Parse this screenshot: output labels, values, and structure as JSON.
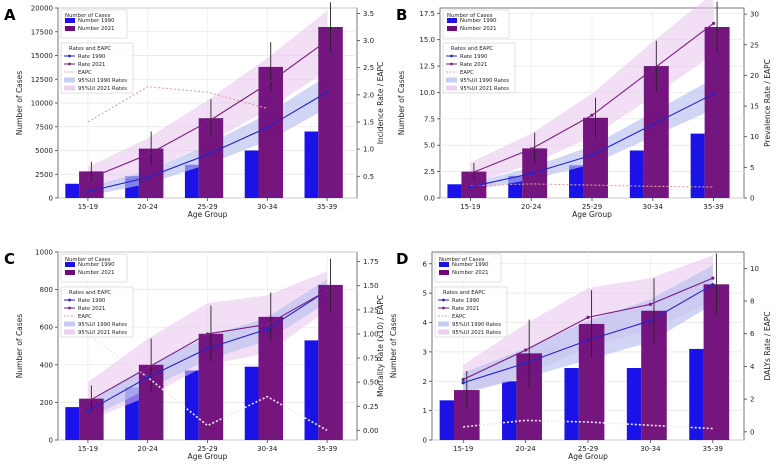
{
  "figure": {
    "colors": {
      "bar1990": "#1a12e6",
      "bar2021": "#6e0a78",
      "line1990": "#2323c8",
      "line2021": "#7a1c82",
      "band1990": "#b8c0f0",
      "band2021": "#e8c4ec",
      "eapc": "#e0a0aa"
    }
  },
  "chart_data": [
    {
      "panel_label": "A",
      "type": "bar",
      "categories": [
        "15-19",
        "20-24",
        "25-29",
        "30-34",
        "35-39"
      ],
      "xlabel": "Age Group",
      "ylabel": "Number of Cases",
      "y2label": "Incidence Rate / EAPC",
      "ylim": [
        0,
        20000
      ],
      "yticks": [
        0,
        2500,
        5000,
        7500,
        10000,
        12500,
        15000,
        17500,
        20000
      ],
      "y2lim": [
        0.1,
        3.6
      ],
      "y2ticks": [
        0.5,
        1.0,
        1.5,
        2.0,
        2.5,
        3.0,
        3.5
      ],
      "y2ticklabels": [
        "0.5",
        "1.0",
        "1.5",
        "2.0",
        "2.5",
        "3.0",
        "3.5"
      ],
      "series": [
        {
          "name": "Number 1990",
          "values": [
            1500,
            2300,
            3500,
            5000,
            7000
          ]
        },
        {
          "name": "Number 2021",
          "values": [
            2800,
            5200,
            8400,
            13800,
            18000
          ],
          "err": [
            1000,
            1800,
            2000,
            2600,
            2600
          ]
        },
        {
          "name": "Rate 1990",
          "values": [
            0.22,
            0.48,
            0.9,
            1.4,
            2.05
          ],
          "band": [
            0.08,
            0.12,
            0.18,
            0.25,
            0.3
          ]
        },
        {
          "name": "Rate 2021",
          "values": [
            0.45,
            0.9,
            1.5,
            2.2,
            3.0
          ],
          "band": [
            0.22,
            0.3,
            0.4,
            0.48,
            0.55
          ]
        },
        {
          "name": "EAPC",
          "values": [
            1.5,
            2.15,
            2.05,
            1.75,
            null
          ]
        }
      ],
      "legend": {
        "cases_title": "Number of Cases",
        "cases_items": [
          "Number 1990",
          "Number 2021"
        ],
        "rates_title": "Rates and EAPC",
        "rates_items": [
          "Rate 1990",
          "Rate 2021",
          "EAPC",
          "95%UI 1990 Rates",
          "95%UI 2021 Rates"
        ]
      }
    },
    {
      "panel_label": "B",
      "type": "bar",
      "categories": [
        "15-19",
        "20-24",
        "25-29",
        "30-34",
        "35-39"
      ],
      "xlabel": "Age Group",
      "ylabel": "Number of Cases",
      "y2label": "Prevalence Rate / EAPC",
      "ylim": [
        0,
        18000
      ],
      "yticks": [
        0,
        2500,
        5000,
        7500,
        10000,
        12500,
        15000,
        17500
      ],
      "yticklabels": [
        "0.0",
        "2.5",
        "5.0",
        "7.5",
        "10.0",
        "12.5",
        "15.0",
        "17.5"
      ],
      "y2lim": [
        0,
        31
      ],
      "y2ticks": [
        0,
        5,
        10,
        15,
        20,
        25,
        30
      ],
      "y2ticklabels": [
        "0",
        "5",
        "10",
        "15",
        "20",
        "25",
        "30"
      ],
      "series": [
        {
          "name": "Number 1990",
          "values": [
            1300,
            2100,
            3100,
            4500,
            6100
          ]
        },
        {
          "name": "Number 2021",
          "values": [
            2500,
            4700,
            7600,
            12500,
            16200
          ],
          "err": [
            800,
            1500,
            1900,
            2400,
            2400
          ]
        },
        {
          "name": "Rate 1990",
          "values": [
            1.8,
            4.0,
            7.0,
            12.0,
            17.0
          ],
          "band": [
            0.6,
            1.0,
            1.5,
            2.0,
            2.5
          ]
        },
        {
          "name": "Rate 2021",
          "values": [
            4.0,
            8.0,
            13.5,
            21.0,
            28.5
          ],
          "band": [
            1.8,
            2.5,
            3.5,
            4.5,
            5.0
          ]
        },
        {
          "name": "EAPC",
          "values": [
            2.0,
            2.3,
            2.1,
            1.9,
            1.8
          ]
        }
      ],
      "legend": {
        "cases_title": "Number of Cases",
        "cases_items": [
          "Number 1990",
          "Number 2021"
        ],
        "rates_title": "Rates and EAPC",
        "rates_items": [
          "Rate 1990",
          "Rate 2021",
          "EAPC",
          "95%UI 1990 Rates",
          "95%UI 2021 Rates"
        ]
      }
    },
    {
      "panel_label": "C",
      "type": "bar",
      "categories": [
        "15-19",
        "20-24",
        "25-29",
        "30-34",
        "35-39"
      ],
      "xlabel": "Age Group",
      "ylabel": "Number of Cases",
      "y2label": "Mortality Rate (x10) / EAPC",
      "ylim": [
        0,
        1000
      ],
      "yticks": [
        0,
        200,
        400,
        600,
        800,
        1000
      ],
      "y2lim": [
        -0.1,
        1.85
      ],
      "y2ticks": [
        0,
        0.25,
        0.5,
        0.75,
        1.0,
        1.25,
        1.5,
        1.75
      ],
      "y2ticklabels": [
        "0.00",
        "0.25",
        "0.50",
        "0.75",
        "1.00",
        "1.25",
        "1.50",
        "1.75"
      ],
      "series": [
        {
          "name": "Number 1990",
          "values": [
            175,
            280,
            370,
            390,
            530
          ]
        },
        {
          "name": "Number 2021",
          "values": [
            220,
            400,
            565,
            655,
            825
          ],
          "err": [
            70,
            140,
            150,
            130,
            140
          ]
        },
        {
          "name": "Rate 1990",
          "values": [
            0.2,
            0.55,
            0.85,
            1.05,
            1.45
          ],
          "band": [
            0.08,
            0.12,
            0.12,
            0.12,
            0.12
          ]
        },
        {
          "name": "Rate 2021",
          "values": [
            0.3,
            0.65,
            1.0,
            1.1,
            1.45
          ],
          "band": [
            0.2,
            0.3,
            0.32,
            0.3,
            0.2
          ]
        },
        {
          "name": "EAPC",
          "values": [
            1.0,
            0.55,
            0.05,
            0.35,
            0.0
          ]
        }
      ],
      "legend": {
        "cases_title": "Number of Cases",
        "cases_items": [
          "Number 1990",
          "Number 2021"
        ],
        "rates_title": "Rates and EAPC",
        "rates_items": [
          "Rate 1990",
          "Rate 2021",
          "EAPC",
          "95%UI 1990 Rates",
          "95%UI 2021 Rates"
        ]
      }
    },
    {
      "panel_label": "D",
      "type": "bar",
      "categories": [
        "15-19",
        "20-24",
        "25-29",
        "30-34",
        "35-39"
      ],
      "xlabel": "Age Group",
      "ylabel": "Number of Cases",
      "y2label": "DALYs Rate / EAPC",
      "ylim": [
        0,
        6.4
      ],
      "yticks": [
        0,
        1,
        2,
        3,
        4,
        5,
        6
      ],
      "y2lim": [
        -0.5,
        11
      ],
      "y2ticks": [
        0,
        2,
        4,
        6,
        8,
        10
      ],
      "y2ticklabels": [
        "0",
        "2",
        "4",
        "6",
        "8",
        "10"
      ],
      "series": [
        {
          "name": "Number 1990",
          "values": [
            1.35,
            2.0,
            2.45,
            2.45,
            3.1
          ]
        },
        {
          "name": "Number 2021",
          "values": [
            1.7,
            2.95,
            3.95,
            4.4,
            5.3
          ],
          "err": [
            0.65,
            1.15,
            1.15,
            1.1,
            1.05
          ]
        },
        {
          "name": "Rate 1990",
          "values": [
            3.0,
            4.2,
            5.6,
            6.8,
            9.0
          ],
          "band": [
            0.6,
            0.9,
            1.2,
            1.3,
            1.2
          ]
        },
        {
          "name": "Rate 2021",
          "values": [
            3.2,
            5.0,
            7.0,
            7.8,
            9.4
          ],
          "band": [
            0.9,
            1.6,
            1.8,
            1.6,
            1.4
          ]
        },
        {
          "name": "EAPC",
          "values": [
            0.3,
            0.7,
            0.6,
            0.4,
            0.2
          ]
        }
      ],
      "legend": {
        "cases_title": "Number of Cases",
        "cases_items": [
          "Number 1990",
          "Number 2021"
        ],
        "rates_title": "Rates and EAPC",
        "rates_items": [
          "Rate 1990",
          "Rate 2021",
          "EAPC",
          "95%UI 1990 Rates",
          "95%UI 2021 Rates"
        ]
      }
    }
  ]
}
